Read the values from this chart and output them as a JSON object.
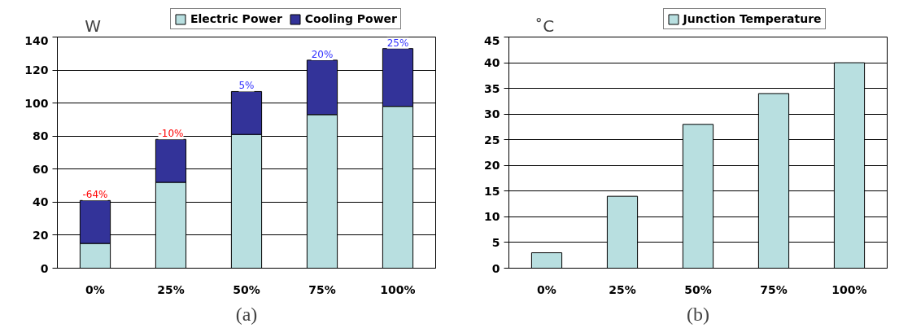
{
  "chart_data": [
    {
      "type": "bar",
      "stacked": true,
      "categories": [
        "0%",
        "25%",
        "50%",
        "75%",
        "100%"
      ],
      "series": [
        {
          "name": "Electric Power",
          "color": "#b8dfe0",
          "values": [
            15,
            52,
            81,
            93,
            98
          ]
        },
        {
          "name": "Cooling Power",
          "color": "#333399",
          "values": [
            26,
            26,
            26,
            33,
            35
          ]
        }
      ],
      "ylabel": "W",
      "xlabel": "(a)",
      "ylim": [
        0,
        140
      ],
      "yticks": [
        0,
        20,
        40,
        60,
        80,
        100,
        120,
        140
      ],
      "grid": "y",
      "legend": "top",
      "annotations": [
        {
          "text": "-64%",
          "x": "0%",
          "y": 41
        },
        {
          "text": "-10%",
          "x": "25%",
          "y": 78
        },
        {
          "text": "5%",
          "x": "50%",
          "y": 107
        },
        {
          "text": "20%",
          "x": "75%",
          "y": 126
        },
        {
          "text": "25%",
          "x": "100%",
          "y": 133
        }
      ]
    },
    {
      "type": "bar",
      "categories": [
        "0%",
        "25%",
        "50%",
        "75%",
        "100%"
      ],
      "series": [
        {
          "name": "Junction Temperature",
          "color": "#b8dfe0",
          "values": [
            3,
            14,
            28,
            34,
            40
          ]
        }
      ],
      "ylabel": "˚C",
      "xlabel": "(b)",
      "ylim": [
        0,
        45
      ],
      "yticks": [
        0,
        5,
        10,
        15,
        20,
        25,
        30,
        35,
        40,
        45
      ],
      "grid": "y",
      "legend": "top"
    }
  ]
}
